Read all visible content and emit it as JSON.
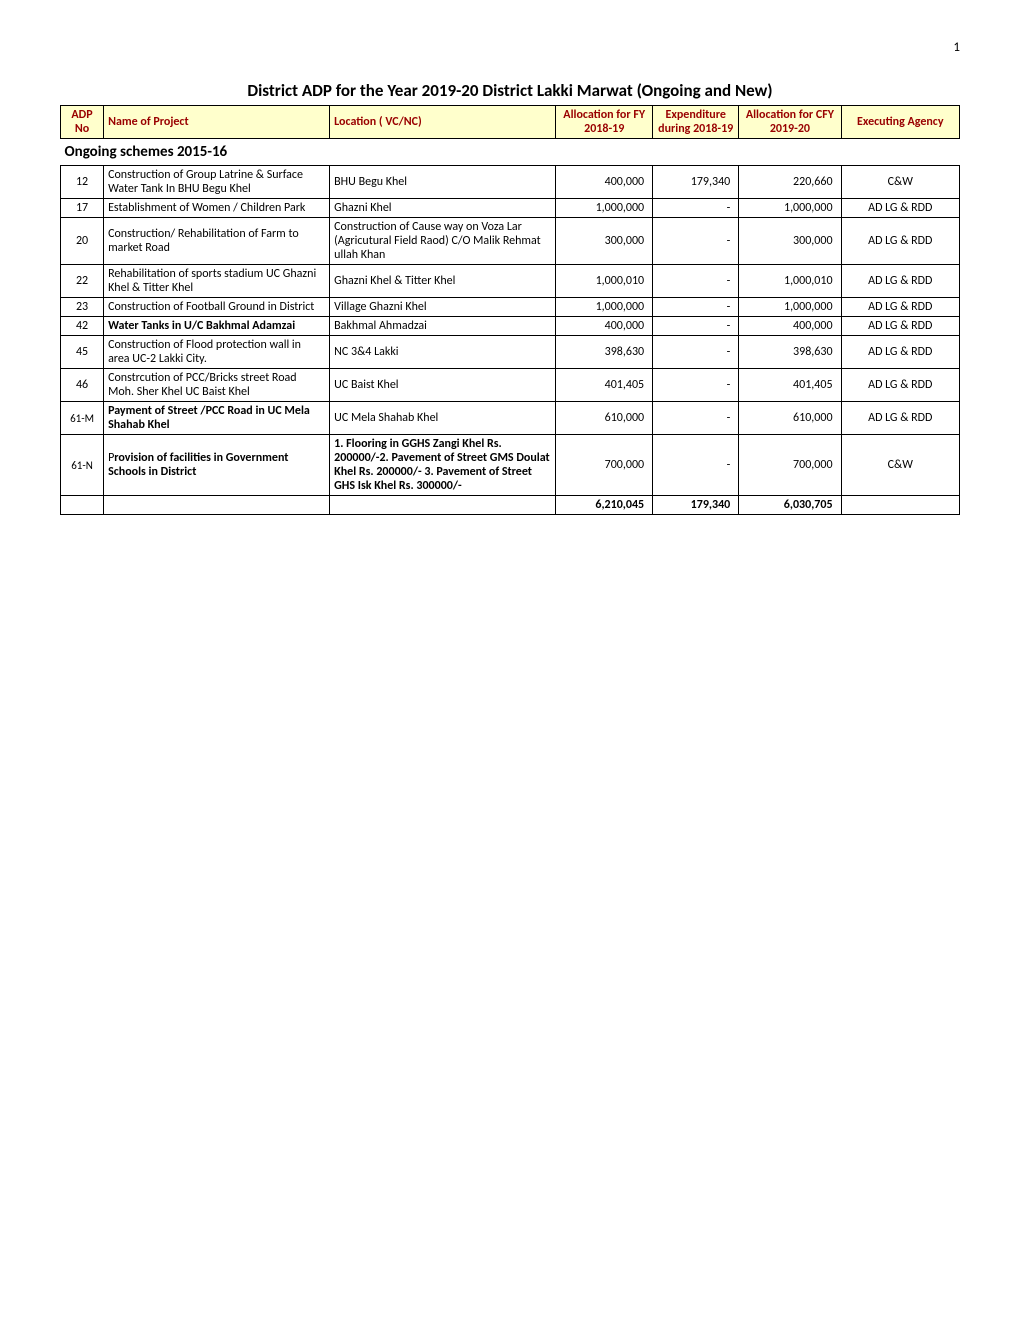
{
  "page_number": "1",
  "title": "District ADP for the Year 2019-20  District Lakki Marwat (Ongoing and New)",
  "headers": {
    "adp_no": "ADP No",
    "name": "Name of Project",
    "location": "Location ( VC/NC)",
    "alloc_fy1819": "Allocation for FY 2018-19",
    "exp_1819": "Expenditure during 2018-19",
    "alloc_cfy1920": "Allocation for CFY 2019-20",
    "agency": "Executing Agency"
  },
  "section_header": "Ongoing schemes 2015-16",
  "rows": [
    {
      "adp_no": "12",
      "name": "Construction of Group Latrine & Surface Water Tank In BHU Begu Khel",
      "location": "BHU Begu Khel",
      "alloc_fy1819": "400,000",
      "exp_1819": "179,340",
      "alloc_cfy1920": "220,660",
      "agency": "C&W",
      "name_bold": false
    },
    {
      "adp_no": "17",
      "name": "Establishment of Women / Children Park",
      "location": "Ghazni Khel",
      "alloc_fy1819": "1,000,000",
      "exp_1819": "-",
      "alloc_cfy1920": "1,000,000",
      "agency": "AD LG & RDD",
      "name_bold": false
    },
    {
      "adp_no": "20",
      "name": "Construction/ Rehabilitation of Farm to market Road",
      "location": "Construction of Cause way on Voza Lar (Agricutural Field Raod) C/O Malik Rehmat ullah Khan",
      "alloc_fy1819": "300,000",
      "exp_1819": "-",
      "alloc_cfy1920": "300,000",
      "agency": "AD LG & RDD",
      "name_bold": false
    },
    {
      "adp_no": "22",
      "name": "Rehabilitation of sports stadium UC Ghazni Khel & Titter Khel",
      "location": "Ghazni Khel & Titter Khel",
      "alloc_fy1819": "1,000,010",
      "exp_1819": "-",
      "alloc_cfy1920": "1,000,010",
      "agency": "AD LG & RDD",
      "name_bold": false
    },
    {
      "adp_no": "23",
      "name": "Construction of Football Ground in District",
      "location": "Village Ghazni Khel",
      "alloc_fy1819": "1,000,000",
      "exp_1819": "-",
      "alloc_cfy1920": "1,000,000",
      "agency": "AD LG & RDD",
      "name_bold": false
    },
    {
      "adp_no": "42",
      "name": "Water Tanks in  U/C Bakhmal Adamzai",
      "location": "Bakhmal Ahmadzai",
      "alloc_fy1819": "400,000",
      "exp_1819": "-",
      "alloc_cfy1920": "400,000",
      "agency": "AD LG & RDD",
      "name_bold": true
    },
    {
      "adp_no": "45",
      "name": "Construction of Flood protection wall in area UC-2 Lakki City.",
      "location": "NC 3&4 Lakki",
      "alloc_fy1819": "398,630",
      "exp_1819": "-",
      "alloc_cfy1920": "398,630",
      "agency": "AD LG & RDD",
      "name_bold": false
    },
    {
      "adp_no": "46",
      "name": "Constrcution of PCC/Bricks street Road Moh. Sher Khel UC Baist Khel",
      "location": "UC Baist Khel",
      "alloc_fy1819": "401,405",
      "exp_1819": "-",
      "alloc_cfy1920": "401,405",
      "agency": "AD LG & RDD",
      "name_bold": false
    },
    {
      "adp_no": "61-M",
      "name": "Payment of Street /PCC Road in UC Mela Shahab Khel",
      "location": "UC Mela Shahab Khel",
      "alloc_fy1819": "610,000",
      "exp_1819": "-",
      "alloc_cfy1920": "610,000",
      "agency": "AD LG & RDD",
      "name_bold": true
    },
    {
      "adp_no": "61-N",
      "name_prefix": "P",
      "name_rest": "rovision of facilities in Government Schools in District",
      "location": "1. Flooring in GGHS Zangi Khel Rs. 200000/-2. Pavement of Street GMS Doulat Khel Rs. 200000/- 3. Pavement of Street GHS Isk Khel Rs. 300000/-",
      "alloc_fy1819": "700,000",
      "exp_1819": "-",
      "alloc_cfy1920": "700,000",
      "agency": "C&W",
      "special_bold": true
    }
  ],
  "totals": {
    "alloc_fy1819": "6,210,045",
    "exp_1819": "179,340",
    "alloc_cfy1920": "6,030,705"
  }
}
